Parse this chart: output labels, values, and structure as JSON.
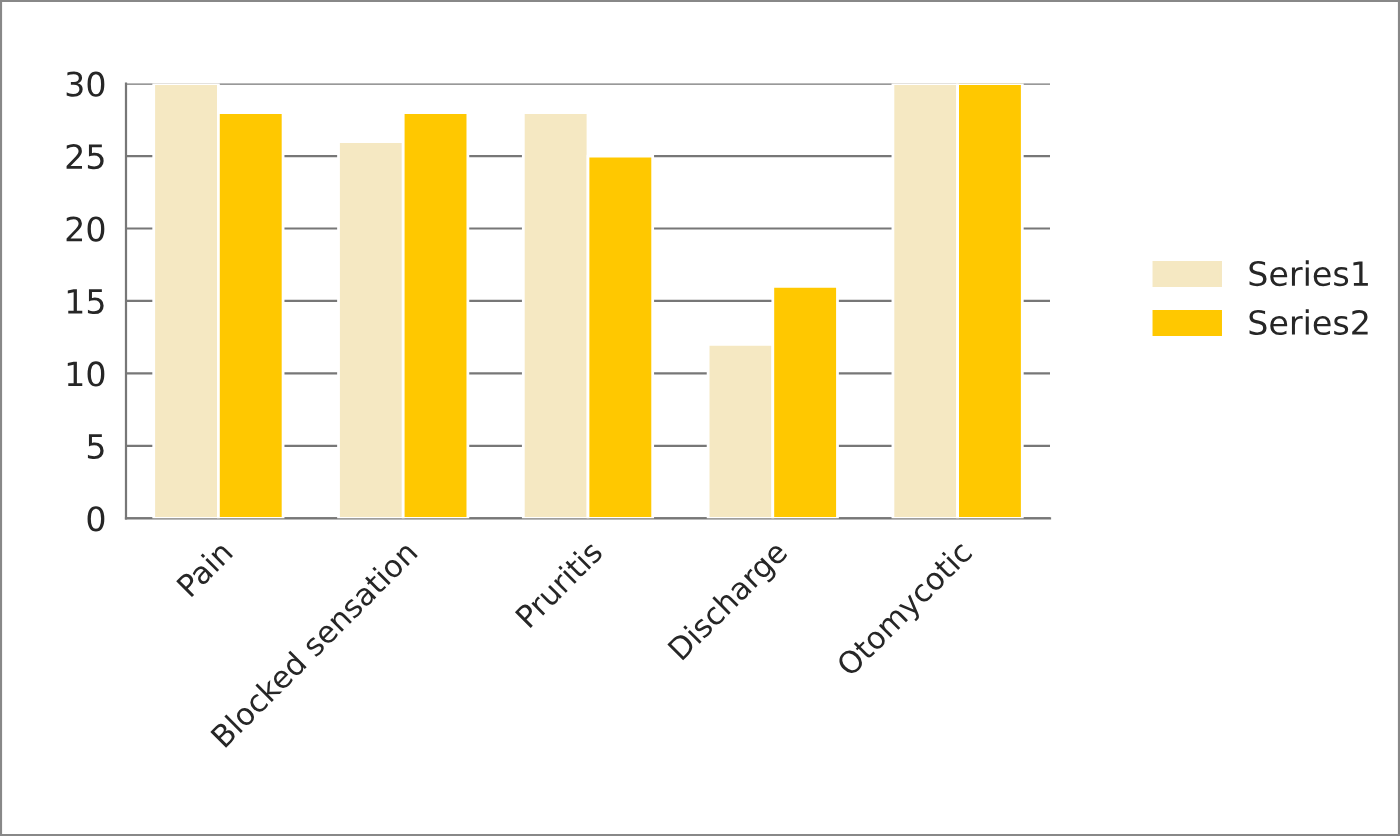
{
  "chart_data": {
    "type": "bar",
    "categories": [
      "Pain",
      "Blocked sensation",
      "Pruritis",
      "Discharge",
      "Otomycotic"
    ],
    "series": [
      {
        "name": "Series1",
        "color": "#f5e8c2",
        "values": [
          30,
          26,
          28,
          12,
          30
        ]
      },
      {
        "name": "Series2",
        "color": "#ffc800",
        "values": [
          28,
          28,
          25,
          16,
          30
        ]
      }
    ],
    "ylim": [
      0,
      30
    ],
    "yticks": [
      0,
      5,
      10,
      15,
      20,
      25,
      30
    ],
    "grid": "y",
    "legend": "right"
  }
}
